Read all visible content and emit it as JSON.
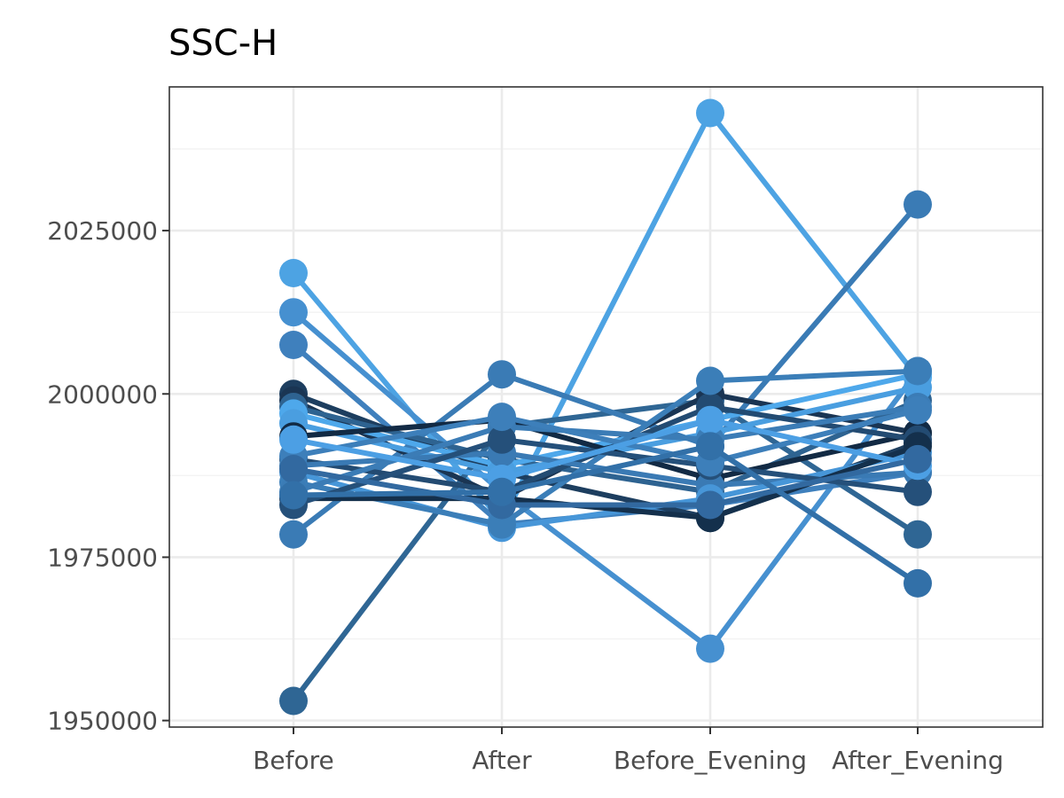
{
  "chart_data": {
    "type": "line",
    "title": "SSC-H",
    "xlabel": "",
    "ylabel": "",
    "categories": [
      "Before",
      "After",
      "Before_Evening",
      "After_Evening"
    ],
    "ylim": [
      1949000,
      2047000
    ],
    "yticks": [
      1950000,
      1975000,
      2000000,
      2025000
    ],
    "yticklabels": [
      "1950000",
      "1975000",
      "2000000",
      "2025000"
    ],
    "grid": true,
    "legend": "none",
    "series": [
      {
        "values": [
          2018500,
          1980500,
          2043000,
          2002500
        ],
        "color": "#4da3e3"
      },
      {
        "values": [
          2012500,
          1985000,
          1961000,
          2003500
        ],
        "color": "#4690d0"
      },
      {
        "values": [
          2007500,
          1980000,
          1983000,
          1988000
        ],
        "color": "#3f80bd"
      },
      {
        "values": [
          1953000,
          1995000,
          1999000,
          1978500
        ],
        "color": "#2f6694"
      },
      {
        "values": [
          1978500,
          2003000,
          1992000,
          2029000
        ],
        "color": "#3a7bb5"
      },
      {
        "values": [
          2000000,
          1988000,
          1981000,
          1992500
        ],
        "color": "#1d3e5f"
      },
      {
        "values": [
          1999000,
          1984000,
          2000000,
          1994000
        ],
        "color": "#1a3553"
      },
      {
        "values": [
          1998000,
          1990000,
          1985000,
          1999000
        ],
        "color": "#2e6391"
      },
      {
        "values": [
          1997000,
          1989000,
          1996000,
          2003000
        ],
        "color": "#4ea8eb"
      },
      {
        "values": [
          1995500,
          1988000,
          1994000,
          2001000
        ],
        "color": "#4a9ee0"
      },
      {
        "values": [
          1993500,
          1996000,
          1987000,
          1994000
        ],
        "color": "#122a44"
      },
      {
        "values": [
          1990000,
          1985000,
          1998000,
          1993000
        ],
        "color": "#234b72"
      },
      {
        "values": [
          1989000,
          1991000,
          1986000,
          1988000
        ],
        "color": "#3a7ab4"
      },
      {
        "values": [
          1988000,
          1979500,
          1984000,
          1991000
        ],
        "color": "#4796d8"
      },
      {
        "values": [
          1986500,
          1980000,
          2002000,
          2003500
        ],
        "color": "#3b7eb8"
      },
      {
        "values": [
          1985000,
          1995000,
          1993000,
          1998000
        ],
        "color": "#3b7cb6"
      },
      {
        "values": [
          1984000,
          1984000,
          1981000,
          1992000
        ],
        "color": "#14304c"
      },
      {
        "values": [
          1983000,
          1993000,
          1989000,
          1985000
        ],
        "color": "#25507a"
      },
      {
        "values": [
          1990500,
          1996500,
          1989500,
          1997500
        ],
        "color": "#3d7fba"
      },
      {
        "values": [
          1993000,
          1987000,
          1996000,
          1989000
        ],
        "color": "#4c9fe4"
      },
      {
        "values": [
          1988500,
          1983000,
          1983000,
          1990000
        ],
        "color": "#3269a0"
      },
      {
        "values": [
          1984500,
          1985000,
          1992000,
          1971000
        ],
        "color": "#3270a8"
      }
    ]
  }
}
